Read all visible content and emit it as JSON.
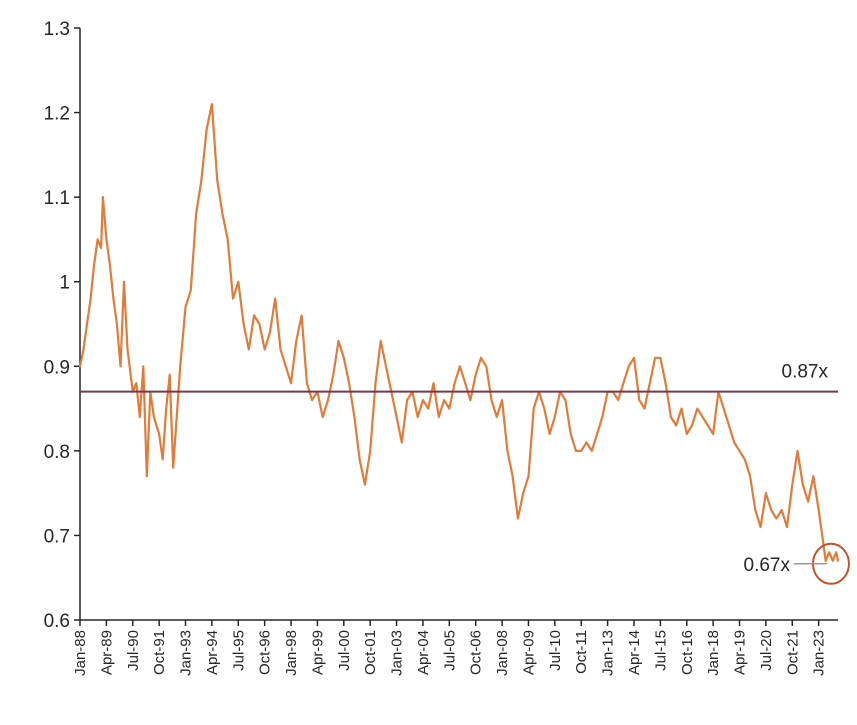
{
  "chart_data": {
    "type": "line",
    "title": "",
    "xlabel": "",
    "ylabel": "",
    "ylim": [
      0.6,
      1.3
    ],
    "yticks": [
      "0.6",
      "0.7",
      "0.8",
      "0.9",
      "1",
      "1.1",
      "1.2",
      "1.3"
    ],
    "xlim": [
      "1988-01",
      "2023-12"
    ],
    "xticks": [
      {
        "label": "Jan-88",
        "date": "1988-01"
      },
      {
        "label": "Apr-89",
        "date": "1989-04"
      },
      {
        "label": "Jul-90",
        "date": "1990-07"
      },
      {
        "label": "Oct-91",
        "date": "1991-10"
      },
      {
        "label": "Jan-93",
        "date": "1993-01"
      },
      {
        "label": "Apr-94",
        "date": "1994-04"
      },
      {
        "label": "Jul-95",
        "date": "1995-07"
      },
      {
        "label": "Oct-96",
        "date": "1996-10"
      },
      {
        "label": "Jan-98",
        "date": "1998-01"
      },
      {
        "label": "Apr-99",
        "date": "1999-04"
      },
      {
        "label": "Jul-00",
        "date": "2000-07"
      },
      {
        "label": "Oct-01",
        "date": "2001-10"
      },
      {
        "label": "Jan-03",
        "date": "2003-01"
      },
      {
        "label": "Apr-04",
        "date": "2004-04"
      },
      {
        "label": "Jul-05",
        "date": "2005-07"
      },
      {
        "label": "Oct-06",
        "date": "2006-10"
      },
      {
        "label": "Jan-08",
        "date": "2008-01"
      },
      {
        "label": "Apr-09",
        "date": "2009-04"
      },
      {
        "label": "Jul-10",
        "date": "2010-07"
      },
      {
        "label": "Oct-11",
        "date": "2011-10"
      },
      {
        "label": "Jan-13",
        "date": "2013-01"
      },
      {
        "label": "Apr-14",
        "date": "2014-04"
      },
      {
        "label": "Jul-15",
        "date": "2015-07"
      },
      {
        "label": "Oct-16",
        "date": "2016-10"
      },
      {
        "label": "Jan-18",
        "date": "2018-01"
      },
      {
        "label": "Apr-19",
        "date": "2019-04"
      },
      {
        "label": "Jul-20",
        "date": "2020-07"
      },
      {
        "label": "Oct-21",
        "date": "2021-10"
      },
      {
        "label": "Jan-23",
        "date": "2023-01"
      }
    ],
    "grid": false,
    "legend": "none",
    "series": [
      {
        "color": "#e07b39",
        "points": [
          [
            "1988-01",
            0.9
          ],
          [
            "1988-03",
            0.92
          ],
          [
            "1988-05",
            0.95
          ],
          [
            "1988-07",
            0.98
          ],
          [
            "1988-09",
            1.02
          ],
          [
            "1988-11",
            1.05
          ],
          [
            "1989-01",
            1.04
          ],
          [
            "1989-02",
            1.1
          ],
          [
            "1989-04",
            1.05
          ],
          [
            "1989-06",
            1.02
          ],
          [
            "1989-08",
            0.98
          ],
          [
            "1989-10",
            0.95
          ],
          [
            "1989-12",
            0.9
          ],
          [
            "1990-02",
            1.0
          ],
          [
            "1990-04",
            0.92
          ],
          [
            "1990-07",
            0.87
          ],
          [
            "1990-09",
            0.88
          ],
          [
            "1990-11",
            0.84
          ],
          [
            "1991-01",
            0.9
          ],
          [
            "1991-03",
            0.77
          ],
          [
            "1991-05",
            0.87
          ],
          [
            "1991-07",
            0.84
          ],
          [
            "1991-10",
            0.82
          ],
          [
            "1991-12",
            0.79
          ],
          [
            "1992-02",
            0.85
          ],
          [
            "1992-04",
            0.89
          ],
          [
            "1992-06",
            0.78
          ],
          [
            "1992-08",
            0.84
          ],
          [
            "1992-10",
            0.9
          ],
          [
            "1993-01",
            0.97
          ],
          [
            "1993-04",
            0.99
          ],
          [
            "1993-07",
            1.08
          ],
          [
            "1993-10",
            1.12
          ],
          [
            "1994-01",
            1.18
          ],
          [
            "1994-04",
            1.21
          ],
          [
            "1994-07",
            1.12
          ],
          [
            "1994-10",
            1.08
          ],
          [
            "1995-01",
            1.05
          ],
          [
            "1995-04",
            0.98
          ],
          [
            "1995-07",
            1.0
          ],
          [
            "1995-10",
            0.95
          ],
          [
            "1996-01",
            0.92
          ],
          [
            "1996-04",
            0.96
          ],
          [
            "1996-07",
            0.95
          ],
          [
            "1996-10",
            0.92
          ],
          [
            "1997-01",
            0.94
          ],
          [
            "1997-04",
            0.98
          ],
          [
            "1997-07",
            0.92
          ],
          [
            "1997-10",
            0.9
          ],
          [
            "1998-01",
            0.88
          ],
          [
            "1998-04",
            0.93
          ],
          [
            "1998-07",
            0.96
          ],
          [
            "1998-10",
            0.88
          ],
          [
            "1999-01",
            0.86
          ],
          [
            "1999-04",
            0.87
          ],
          [
            "1999-07",
            0.84
          ],
          [
            "1999-10",
            0.86
          ],
          [
            "2000-01",
            0.89
          ],
          [
            "2000-04",
            0.93
          ],
          [
            "2000-07",
            0.91
          ],
          [
            "2000-10",
            0.88
          ],
          [
            "2001-01",
            0.84
          ],
          [
            "2001-04",
            0.79
          ],
          [
            "2001-07",
            0.76
          ],
          [
            "2001-10",
            0.8
          ],
          [
            "2002-01",
            0.88
          ],
          [
            "2002-04",
            0.93
          ],
          [
            "2002-07",
            0.9
          ],
          [
            "2002-10",
            0.87
          ],
          [
            "2003-01",
            0.84
          ],
          [
            "2003-04",
            0.81
          ],
          [
            "2003-07",
            0.86
          ],
          [
            "2003-10",
            0.87
          ],
          [
            "2004-01",
            0.84
          ],
          [
            "2004-04",
            0.86
          ],
          [
            "2004-07",
            0.85
          ],
          [
            "2004-10",
            0.88
          ],
          [
            "2005-01",
            0.84
          ],
          [
            "2005-04",
            0.86
          ],
          [
            "2005-07",
            0.85
          ],
          [
            "2005-10",
            0.88
          ],
          [
            "2006-01",
            0.9
          ],
          [
            "2006-04",
            0.88
          ],
          [
            "2006-07",
            0.86
          ],
          [
            "2006-10",
            0.89
          ],
          [
            "2007-01",
            0.91
          ],
          [
            "2007-04",
            0.9
          ],
          [
            "2007-07",
            0.86
          ],
          [
            "2007-10",
            0.84
          ],
          [
            "2008-01",
            0.86
          ],
          [
            "2008-04",
            0.8
          ],
          [
            "2008-07",
            0.77
          ],
          [
            "2008-10",
            0.72
          ],
          [
            "2009-01",
            0.75
          ],
          [
            "2009-04",
            0.77
          ],
          [
            "2009-07",
            0.85
          ],
          [
            "2009-10",
            0.87
          ],
          [
            "2010-01",
            0.85
          ],
          [
            "2010-04",
            0.82
          ],
          [
            "2010-07",
            0.84
          ],
          [
            "2010-10",
            0.87
          ],
          [
            "2011-01",
            0.86
          ],
          [
            "2011-04",
            0.82
          ],
          [
            "2011-07",
            0.8
          ],
          [
            "2011-10",
            0.8
          ],
          [
            "2012-01",
            0.81
          ],
          [
            "2012-04",
            0.8
          ],
          [
            "2012-07",
            0.82
          ],
          [
            "2012-10",
            0.84
          ],
          [
            "2013-01",
            0.87
          ],
          [
            "2013-04",
            0.87
          ],
          [
            "2013-07",
            0.86
          ],
          [
            "2013-10",
            0.88
          ],
          [
            "2014-01",
            0.9
          ],
          [
            "2014-04",
            0.91
          ],
          [
            "2014-07",
            0.86
          ],
          [
            "2014-10",
            0.85
          ],
          [
            "2015-01",
            0.88
          ],
          [
            "2015-04",
            0.91
          ],
          [
            "2015-07",
            0.91
          ],
          [
            "2015-10",
            0.88
          ],
          [
            "2016-01",
            0.84
          ],
          [
            "2016-04",
            0.83
          ],
          [
            "2016-07",
            0.85
          ],
          [
            "2016-10",
            0.82
          ],
          [
            "2017-01",
            0.83
          ],
          [
            "2017-04",
            0.85
          ],
          [
            "2017-07",
            0.84
          ],
          [
            "2017-10",
            0.83
          ],
          [
            "2018-01",
            0.82
          ],
          [
            "2018-04",
            0.87
          ],
          [
            "2018-07",
            0.85
          ],
          [
            "2018-10",
            0.83
          ],
          [
            "2019-01",
            0.81
          ],
          [
            "2019-04",
            0.8
          ],
          [
            "2019-07",
            0.79
          ],
          [
            "2019-10",
            0.77
          ],
          [
            "2020-01",
            0.73
          ],
          [
            "2020-04",
            0.71
          ],
          [
            "2020-07",
            0.75
          ],
          [
            "2020-10",
            0.73
          ],
          [
            "2021-01",
            0.72
          ],
          [
            "2021-04",
            0.73
          ],
          [
            "2021-07",
            0.71
          ],
          [
            "2021-10",
            0.76
          ],
          [
            "2022-01",
            0.8
          ],
          [
            "2022-04",
            0.76
          ],
          [
            "2022-07",
            0.74
          ],
          [
            "2022-10",
            0.77
          ],
          [
            "2023-01",
            0.73
          ],
          [
            "2023-03",
            0.7
          ],
          [
            "2023-05",
            0.67
          ],
          [
            "2023-07",
            0.68
          ],
          [
            "2023-09",
            0.67
          ],
          [
            "2023-11",
            0.68
          ],
          [
            "2023-12",
            0.67
          ]
        ]
      }
    ],
    "annotations": {
      "reference_line": {
        "value": 0.87,
        "label": "0.87x",
        "color": "#7b3547"
      },
      "latest": {
        "value": 0.67,
        "label": "0.67x",
        "color": "#c0562a"
      }
    }
  }
}
